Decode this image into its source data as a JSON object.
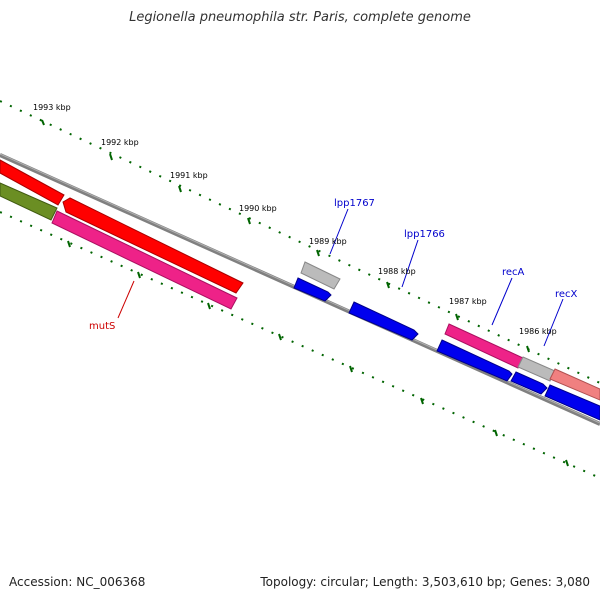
{
  "title": "Legionella pneumophila str. Paris, complete genome",
  "footer": {
    "accession": "Accession: NC_006368",
    "summary": "Topology: circular; Length: 3,503,610 bp; Genes: 3,080"
  },
  "scale": {
    "labels": [
      "1993 kbp",
      "1992 kbp",
      "1991 kbp",
      "1990 kbp",
      "1989 kbp",
      "1988 kbp",
      "1987 kbp",
      "1986 kbp"
    ]
  },
  "genes": {
    "mutS": {
      "label": "mutS",
      "color": "#cc0000"
    },
    "lpp1767": {
      "label": "lpp1767",
      "color": "#0000cc"
    },
    "lpp1766": {
      "label": "lpp1766",
      "color": "#0000cc"
    },
    "recA": {
      "label": "recA",
      "color": "#0000cc"
    },
    "recX": {
      "label": "recX",
      "color": "#0000cc"
    }
  },
  "colors": {
    "red": "#ff0000",
    "pink": "#ee2288",
    "olive": "#6b8e23",
    "blue": "#0000ee",
    "grey": "#bbbbbb",
    "salmon": "#f08080",
    "backbone": "#808080",
    "ticks": "#006400"
  }
}
